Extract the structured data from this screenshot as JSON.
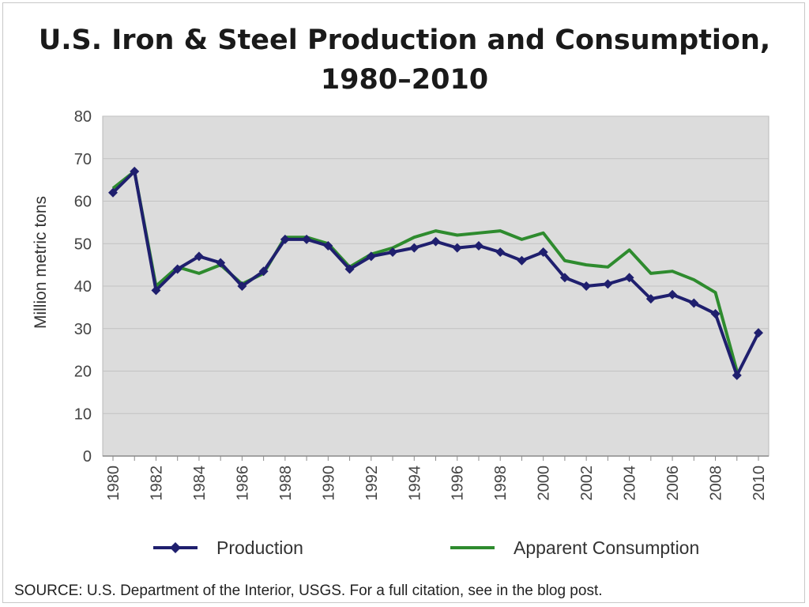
{
  "chart_data": {
    "type": "line",
    "title_line1": "U.S. Iron & Steel Production and Consumption,",
    "title_line2": "1980–2010",
    "ylabel": "Million metric tons",
    "xlabel": "",
    "ylim": [
      0,
      80
    ],
    "yticks": [
      0,
      10,
      20,
      30,
      40,
      50,
      60,
      70,
      80
    ],
    "x": [
      1980,
      1981,
      1982,
      1983,
      1984,
      1985,
      1986,
      1987,
      1988,
      1989,
      1990,
      1991,
      1992,
      1993,
      1994,
      1995,
      1996,
      1997,
      1998,
      1999,
      2000,
      2001,
      2002,
      2003,
      2004,
      2005,
      2006,
      2007,
      2008,
      2009,
      2010
    ],
    "xtick_labels": [
      "1980",
      "1982",
      "1984",
      "1986",
      "1988",
      "1990",
      "1992",
      "1994",
      "1996",
      "1998",
      "2000",
      "2002",
      "2004",
      "2006",
      "2008",
      "2010"
    ],
    "grid": true,
    "legend_position": "bottom",
    "series": [
      {
        "name": "Production",
        "color": "#1f1f6e",
        "marker": "diamond",
        "values": [
          62,
          67,
          39,
          44,
          47,
          45.5,
          40,
          43.5,
          51,
          51,
          49.5,
          44,
          47,
          48,
          49,
          50.5,
          49,
          49.5,
          48,
          46,
          48,
          42,
          40,
          40.5,
          42,
          37,
          38,
          36,
          33.5,
          19,
          29
        ]
      },
      {
        "name": "Apparent Consumption",
        "color": "#2e8b2e",
        "marker": "none",
        "values": [
          63,
          67,
          40,
          44.5,
          43,
          45,
          40.5,
          43,
          51.5,
          51.5,
          50,
          44.5,
          47.5,
          49,
          51.5,
          53,
          52,
          52.5,
          53,
          51,
          52.5,
          46,
          45,
          44.5,
          48.5,
          43,
          43.5,
          41.5,
          38.5,
          20,
          null
        ]
      }
    ]
  },
  "source": "SOURCE: U.S. Department of the Interior, USGS. For a full citation, see in the blog post."
}
